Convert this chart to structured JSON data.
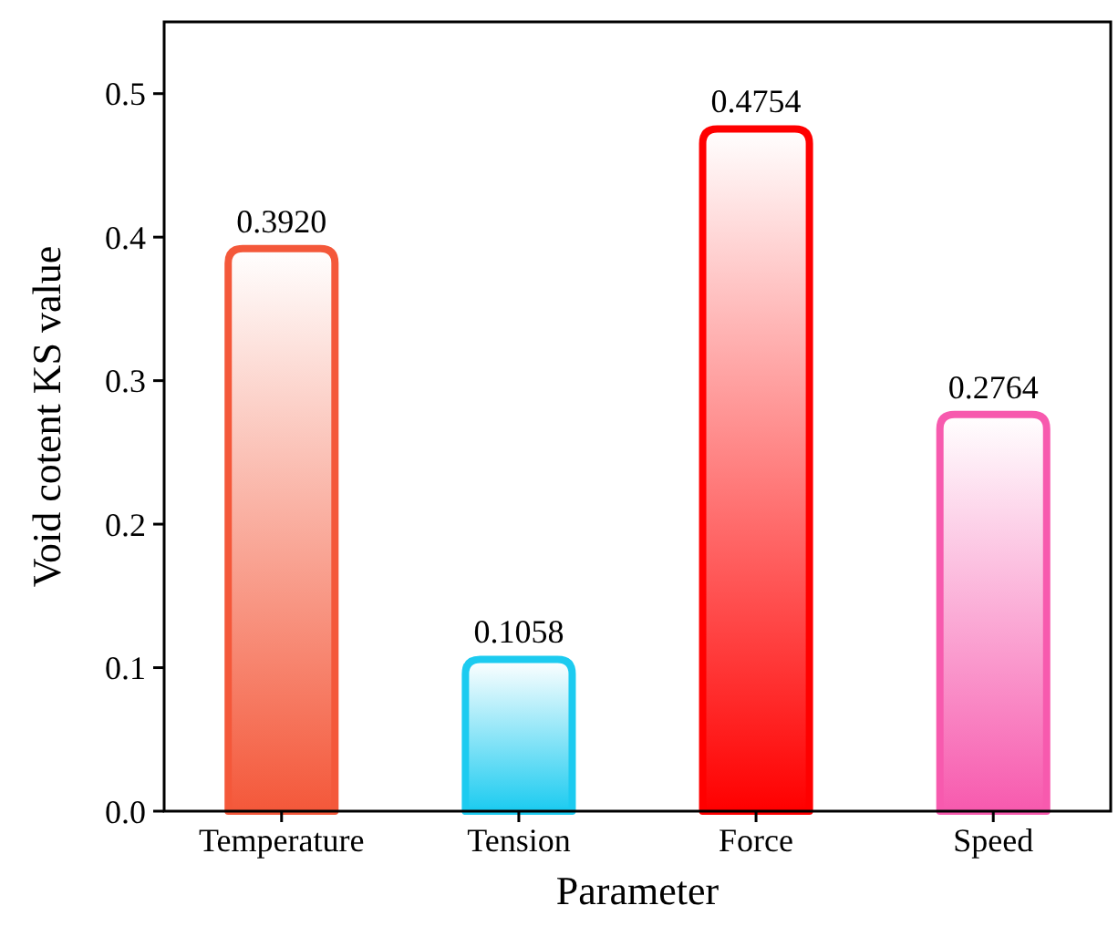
{
  "chart_data": {
    "type": "bar",
    "xlabel": "Parameter",
    "ylabel": "Void cotent KS value",
    "categories": [
      "Temperature",
      "Tension",
      "Force",
      "Speed"
    ],
    "values": [
      0.392,
      0.1058,
      0.4754,
      0.2764
    ],
    "value_labels": [
      "0.3920",
      "0.1058",
      "0.4754",
      "0.2764"
    ],
    "colors": [
      "#f4583a",
      "#1ccbf0",
      "#ff0000",
      "#f75aae"
    ],
    "ylim": [
      0,
      0.55
    ],
    "yticks": [
      {
        "value": 0,
        "label": "0.0"
      },
      {
        "value": 0.1,
        "label": "0.1"
      },
      {
        "value": 0.2,
        "label": "0.2"
      },
      {
        "value": 0.3,
        "label": "0.3"
      },
      {
        "value": 0.4,
        "label": "0.4"
      },
      {
        "value": 0.5,
        "label": "0.5"
      }
    ],
    "grid": false
  }
}
